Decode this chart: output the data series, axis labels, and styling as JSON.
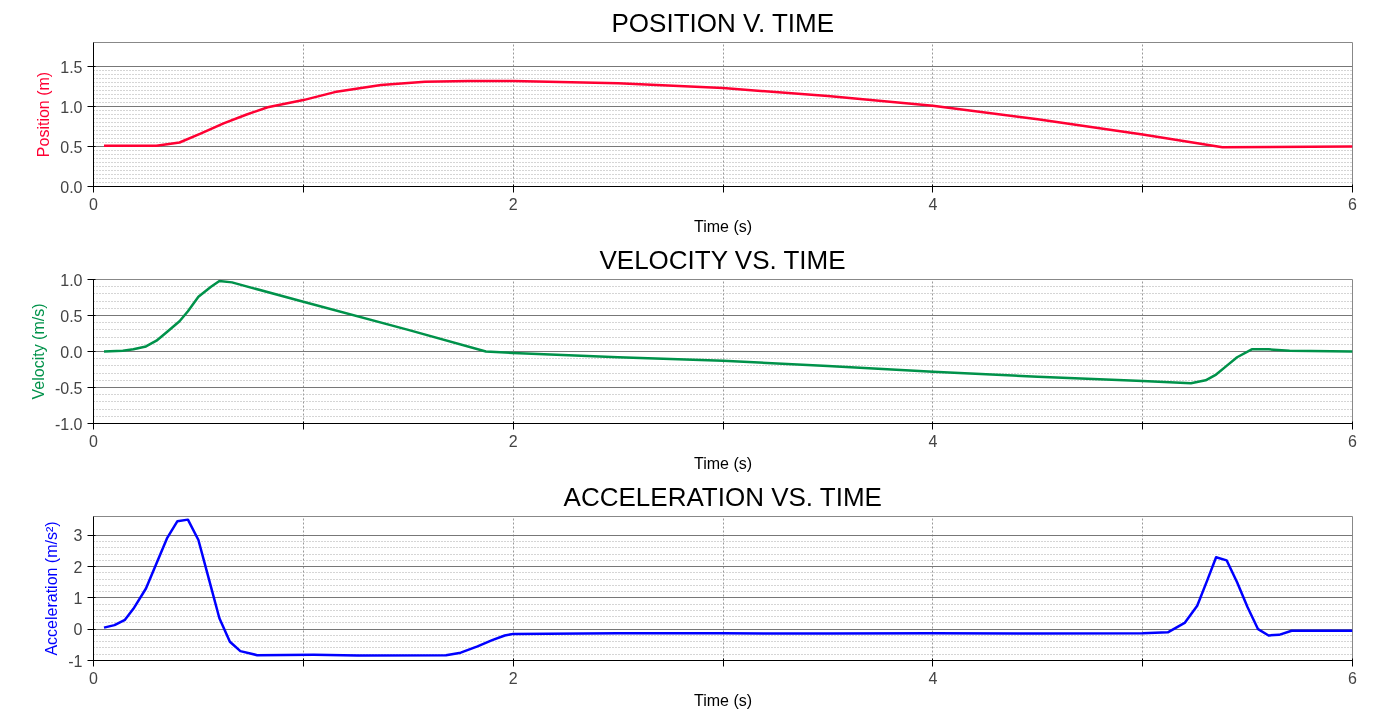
{
  "chart_data": [
    {
      "type": "line",
      "title": "POSITION V. TIME",
      "xlabel": "Time (s)",
      "ylabel": "Position (m)",
      "xlim": [
        0,
        6
      ],
      "xticks": [
        0,
        {
          "value": 1,
          "label": null
        },
        2,
        {
          "value": 3,
          "label": null
        },
        4,
        {
          "value": 5,
          "label": null
        },
        6
      ],
      "ylim": [
        0,
        1.8
      ],
      "yticks": [
        {
          "value": 0,
          "label": "0.0"
        },
        {
          "value": 0.5,
          "label": "0.5"
        },
        {
          "value": 1,
          "label": "1.0"
        },
        {
          "value": 1.5,
          "label": "1.5"
        }
      ],
      "grid": true,
      "series": [
        {
          "color": "#ff0033",
          "x": [
            0.05,
            0.3,
            0.41,
            0.51,
            0.62,
            0.73,
            0.83,
            1.0,
            1.15,
            1.37,
            1.58,
            1.79,
            2.0,
            2.5,
            3.0,
            3.5,
            4.0,
            4.5,
            5.0,
            5.38,
            6.0
          ],
          "values": [
            0.51,
            0.51,
            0.55,
            0.66,
            0.79,
            0.9,
            0.99,
            1.08,
            1.18,
            1.27,
            1.31,
            1.32,
            1.32,
            1.29,
            1.23,
            1.13,
            1.01,
            0.84,
            0.65,
            0.49,
            0.5
          ]
        }
      ]
    },
    {
      "type": "line",
      "title": "VELOCITY VS. TIME",
      "xlabel": "Time (s)",
      "ylabel": "Velocity (m/s)",
      "xlim": [
        0,
        6
      ],
      "xticks": [
        0,
        {
          "value": 1,
          "label": null
        },
        2,
        {
          "value": 3,
          "label": null
        },
        4,
        {
          "value": 5,
          "label": null
        },
        6
      ],
      "ylim": [
        -1,
        1
      ],
      "yticks": [
        {
          "value": -1,
          "label": "-1.0"
        },
        {
          "value": -0.5,
          "label": "-0.5"
        },
        {
          "value": 0,
          "label": "0.0"
        },
        {
          "value": 0.5,
          "label": "0.5"
        },
        {
          "value": 1,
          "label": "1.0"
        }
      ],
      "grid": true,
      "series": [
        {
          "color": "#00924a",
          "x": [
            0.05,
            0.14,
            0.19,
            0.25,
            0.3,
            0.35,
            0.41,
            0.45,
            0.5,
            0.56,
            0.6,
            0.66,
            1.0,
            1.5,
            1.87,
            2.0,
            2.5,
            3.0,
            3.5,
            4.0,
            4.5,
            5.0,
            5.23,
            5.3,
            5.35,
            5.4,
            5.45,
            5.52,
            5.6,
            5.7,
            6.0
          ],
          "values": [
            0.0,
            0.01,
            0.03,
            0.07,
            0.15,
            0.27,
            0.42,
            0.56,
            0.76,
            0.9,
            0.98,
            0.96,
            0.69,
            0.3,
            0.0,
            -0.02,
            -0.08,
            -0.13,
            -0.2,
            -0.28,
            -0.35,
            -0.41,
            -0.44,
            -0.4,
            -0.32,
            -0.2,
            -0.08,
            0.03,
            0.03,
            0.01,
            0.0
          ]
        }
      ]
    },
    {
      "type": "line",
      "title": "ACCELERATION VS. TIME",
      "xlabel": "Time (s)",
      "ylabel": "Acceleration (m/s²)",
      "xlim": [
        0,
        6
      ],
      "xticks": [
        0,
        {
          "value": 1,
          "label": null
        },
        2,
        {
          "value": 3,
          "label": null
        },
        4,
        {
          "value": 5,
          "label": null
        },
        6
      ],
      "ylim": [
        -1,
        3.6
      ],
      "yticks": [
        -1,
        0,
        1,
        2,
        3
      ],
      "grid": true,
      "series": [
        {
          "color": "#0000ff",
          "x": [
            0.05,
            0.1,
            0.15,
            0.19,
            0.25,
            0.3,
            0.35,
            0.4,
            0.45,
            0.5,
            0.55,
            0.6,
            0.65,
            0.7,
            0.78,
            1.05,
            1.26,
            1.68,
            1.75,
            1.83,
            1.9,
            1.96,
            2.0,
            2.5,
            3.0,
            3.5,
            4.0,
            4.5,
            5.0,
            5.12,
            5.2,
            5.26,
            5.31,
            5.35,
            5.4,
            5.45,
            5.5,
            5.55,
            5.6,
            5.65,
            5.71,
            6.0
          ],
          "values": [
            0.05,
            0.13,
            0.3,
            0.65,
            1.3,
            2.1,
            2.9,
            3.45,
            3.5,
            2.85,
            1.6,
            0.35,
            -0.4,
            -0.7,
            -0.83,
            -0.82,
            -0.84,
            -0.83,
            -0.75,
            -0.55,
            -0.35,
            -0.2,
            -0.15,
            -0.13,
            -0.13,
            -0.14,
            -0.13,
            -0.14,
            -0.13,
            -0.1,
            0.2,
            0.75,
            1.6,
            2.3,
            2.2,
            1.5,
            0.7,
            0.0,
            -0.2,
            -0.18,
            -0.05,
            -0.05
          ]
        }
      ]
    }
  ]
}
